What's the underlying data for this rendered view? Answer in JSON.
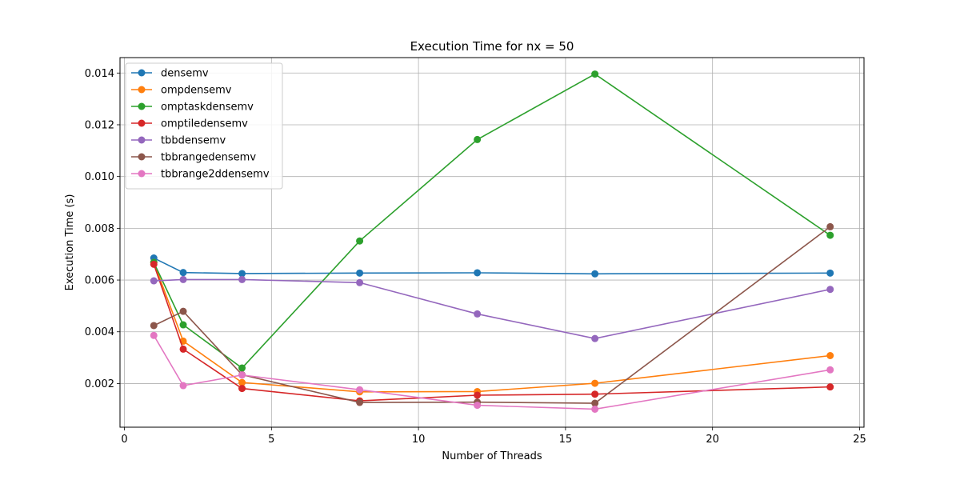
{
  "chart_data": {
    "type": "line",
    "title": "Execution Time for nx = 50",
    "xlabel": "Number of Threads",
    "ylabel": "Execution Time (s)",
    "xlim": [
      -0.15,
      25.15
    ],
    "ylim": [
      0.000313,
      0.014596
    ],
    "x_ticks": [
      0,
      5,
      10,
      15,
      20,
      25
    ],
    "y_ticks": [
      0.002,
      0.004,
      0.006,
      0.008,
      0.01,
      0.012,
      0.014
    ],
    "x_tick_labels": [
      "0",
      "5",
      "10",
      "15",
      "20",
      "25"
    ],
    "y_tick_labels": [
      "0.002",
      "0.004",
      "0.006",
      "0.008",
      "0.010",
      "0.012",
      "0.014"
    ],
    "grid": true,
    "legend_position": "top-left",
    "x": [
      1,
      2,
      4,
      8,
      12,
      16,
      24
    ],
    "series": [
      {
        "name": "densemv",
        "color": "#1f77b4",
        "values": [
          0.00685,
          0.00629,
          0.00625,
          0.00627,
          0.00628,
          0.00624,
          0.00627
        ]
      },
      {
        "name": "ompdensemv",
        "color": "#ff7f0e",
        "values": [
          0.00668,
          0.00364,
          0.00204,
          0.00168,
          0.00169,
          0.00201,
          0.00308
        ]
      },
      {
        "name": "omptaskdensemv",
        "color": "#2ca02c",
        "values": [
          0.00668,
          0.00427,
          0.0026,
          0.00751,
          0.01143,
          0.01396,
          0.00773
        ]
      },
      {
        "name": "omptiledensemv",
        "color": "#d62728",
        "values": [
          0.00661,
          0.00333,
          0.00181,
          0.00133,
          0.00155,
          0.00159,
          0.00187
        ]
      },
      {
        "name": "tbbdensemv",
        "color": "#9467bd",
        "values": [
          0.00597,
          0.00602,
          0.00602,
          0.0059,
          0.00469,
          0.00374,
          0.00564
        ]
      },
      {
        "name": "tbbrangedensemv",
        "color": "#8c564b",
        "values": [
          0.00424,
          0.00479,
          0.00234,
          0.00127,
          0.00128,
          0.00124,
          0.00806
        ]
      },
      {
        "name": "tbbrange2ddensemv",
        "color": "#e377c2",
        "values": [
          0.00386,
          0.00192,
          0.00233,
          0.00176,
          0.00116,
          0.00101,
          0.00253
        ]
      }
    ]
  }
}
